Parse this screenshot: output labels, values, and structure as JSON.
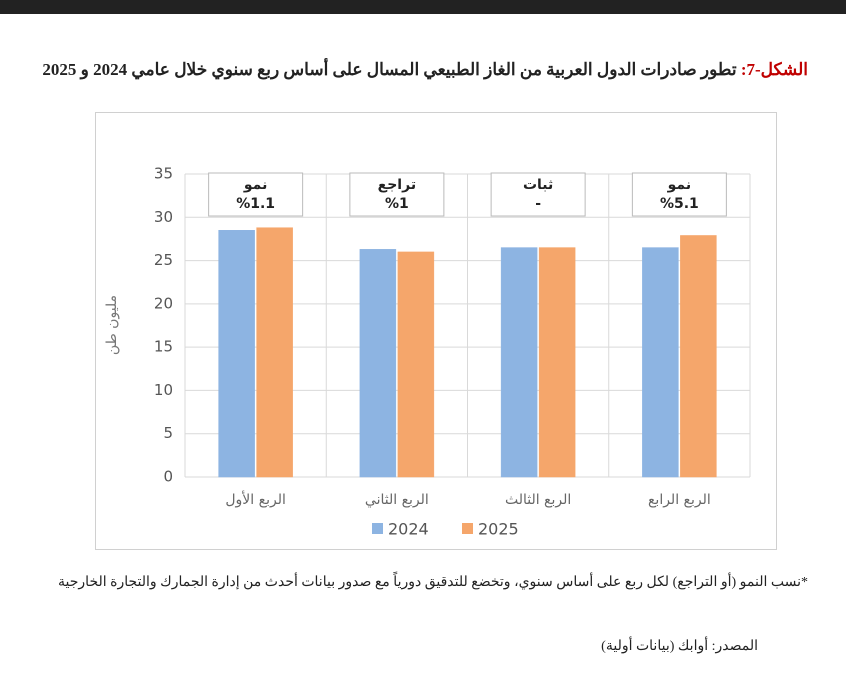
{
  "figure_label": "الشكل-7:",
  "title": "تطور صادرات الدول العربية من الغاز الطبيعي المسال على أساس ربع سنوي خلال عامي 2024 و 2025",
  "chart_data": {
    "type": "bar",
    "y_label": "مليون طن",
    "categories": [
      "الربع الأول",
      "الربع الثاني",
      "الربع الثالث",
      "الربع الرابع"
    ],
    "series": [
      {
        "name": "2024",
        "color": "#8db4e2",
        "values": [
          28.5,
          26.3,
          26.5,
          26.5
        ]
      },
      {
        "name": "2025",
        "color": "#f5a66b",
        "values": [
          28.8,
          26.0,
          26.5,
          27.9
        ]
      }
    ],
    "ylim": [
      0,
      35
    ],
    "yticks": [
      0,
      5,
      10,
      15,
      20,
      25,
      30,
      35
    ],
    "grid": true,
    "annotations": [
      [
        "نمو",
        "%1.1"
      ],
      [
        "تراجع",
        "%1"
      ],
      [
        "ثبات",
        "-"
      ],
      [
        "نمو",
        "%5.1"
      ]
    ]
  },
  "footnote": "*نسب النمو (أو التراجع) لكل ربع على أساس سنوي، وتخضع للتدقيق دورياً مع صدور بيانات أحدث من إدارة الجمارك والتجارة الخارجية",
  "source": "المصدر: أوابك (بيانات أولية)"
}
